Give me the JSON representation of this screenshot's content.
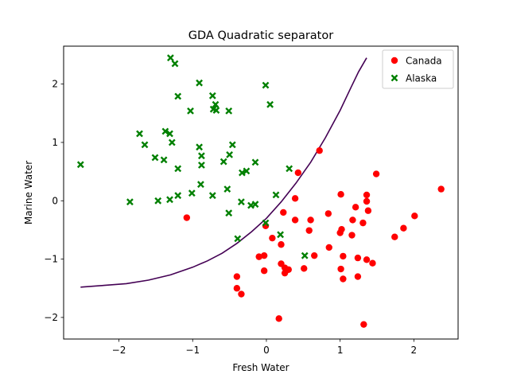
{
  "chart_data": {
    "type": "scatter",
    "title": "GDA Quadratic separator",
    "xlabel": "Fresh Water",
    "ylabel": "Marine Water",
    "xlim": [
      -2.75,
      2.6
    ],
    "ylim": [
      -2.37,
      2.65
    ],
    "xticks": [
      -2,
      -1,
      0,
      1,
      2
    ],
    "yticks": [
      -2,
      -1,
      0,
      1,
      2
    ],
    "xtick_labels": [
      "−2",
      "−1",
      "0",
      "1",
      "2"
    ],
    "ytick_labels": [
      "−2",
      "−1",
      "0",
      "1",
      "2"
    ],
    "grid": false,
    "legend_position": "top-right",
    "series": [
      {
        "name": "Canada",
        "marker": "circle",
        "color": "#ff0000",
        "points": [
          [
            2.37,
            0.2
          ],
          [
            1.49,
            0.46
          ],
          [
            0.72,
            0.86
          ],
          [
            0.43,
            0.48
          ],
          [
            1.01,
            0.11
          ],
          [
            1.36,
            0.1
          ],
          [
            1.36,
            -0.01
          ],
          [
            1.21,
            -0.11
          ],
          [
            1.38,
            -0.17
          ],
          [
            0.23,
            -0.2
          ],
          [
            0.39,
            0.04
          ],
          [
            2.01,
            -0.26
          ],
          [
            1.17,
            -0.33
          ],
          [
            0.6,
            -0.33
          ],
          [
            0.39,
            -0.33
          ],
          [
            0.84,
            -0.22
          ],
          [
            1.31,
            -0.38
          ],
          [
            1.86,
            -0.47
          ],
          [
            1.02,
            -0.49
          ],
          [
            1.74,
            -0.62
          ],
          [
            0.08,
            -0.64
          ],
          [
            0.58,
            -0.51
          ],
          [
            1.0,
            -0.55
          ],
          [
            1.16,
            -0.59
          ],
          [
            -1.08,
            -0.29
          ],
          [
            -0.01,
            -0.43
          ],
          [
            0.2,
            -0.75
          ],
          [
            0.85,
            -0.8
          ],
          [
            -0.1,
            -0.96
          ],
          [
            -0.03,
            -0.94
          ],
          [
            0.65,
            -0.94
          ],
          [
            1.04,
            -0.95
          ],
          [
            1.24,
            -0.98
          ],
          [
            1.36,
            -1.01
          ],
          [
            1.44,
            -1.07
          ],
          [
            0.2,
            -1.08
          ],
          [
            0.25,
            -1.15
          ],
          [
            0.3,
            -1.18
          ],
          [
            0.51,
            -1.16
          ],
          [
            1.01,
            -1.17
          ],
          [
            -0.03,
            -1.2
          ],
          [
            0.25,
            -1.24
          ],
          [
            1.24,
            -1.3
          ],
          [
            -0.4,
            -1.3
          ],
          [
            1.04,
            -1.34
          ],
          [
            -0.4,
            -1.5
          ],
          [
            -0.34,
            -1.6
          ],
          [
            0.17,
            -2.02
          ],
          [
            1.32,
            -2.12
          ]
        ]
      },
      {
        "name": "Alaska",
        "marker": "x",
        "color": "#008000",
        "points": [
          [
            -1.3,
            2.45
          ],
          [
            -1.24,
            2.35
          ],
          [
            -0.91,
            2.02
          ],
          [
            -0.01,
            1.98
          ],
          [
            -0.73,
            1.8
          ],
          [
            -1.2,
            1.79
          ],
          [
            -0.69,
            1.65
          ],
          [
            0.05,
            1.65
          ],
          [
            -0.72,
            1.57
          ],
          [
            -0.68,
            1.55
          ],
          [
            -0.51,
            1.54
          ],
          [
            -1.03,
            1.54
          ],
          [
            -1.72,
            1.15
          ],
          [
            -1.37,
            1.19
          ],
          [
            -1.31,
            1.15
          ],
          [
            -1.65,
            0.96
          ],
          [
            -1.28,
            1.0
          ],
          [
            -0.91,
            0.92
          ],
          [
            -0.46,
            0.96
          ],
          [
            -0.5,
            0.79
          ],
          [
            -1.51,
            0.74
          ],
          [
            -1.39,
            0.7
          ],
          [
            -0.88,
            0.77
          ],
          [
            -0.58,
            0.67
          ],
          [
            -2.52,
            0.62
          ],
          [
            -1.2,
            0.55
          ],
          [
            -0.88,
            0.61
          ],
          [
            -0.33,
            0.48
          ],
          [
            -0.27,
            0.51
          ],
          [
            -0.15,
            0.66
          ],
          [
            0.31,
            0.55
          ],
          [
            -0.89,
            0.28
          ],
          [
            -1.01,
            0.13
          ],
          [
            -0.73,
            0.09
          ],
          [
            -1.2,
            0.09
          ],
          [
            -0.53,
            0.2
          ],
          [
            0.13,
            0.1
          ],
          [
            -1.47,
            0.0
          ],
          [
            -1.31,
            0.02
          ],
          [
            -0.34,
            -0.02
          ],
          [
            -0.21,
            -0.08
          ],
          [
            -0.15,
            -0.06
          ],
          [
            -1.85,
            -0.02
          ],
          [
            -0.51,
            -0.21
          ],
          [
            -0.01,
            -0.38
          ],
          [
            0.19,
            -0.58
          ],
          [
            -0.39,
            -0.65
          ],
          [
            0.52,
            -0.94
          ]
        ]
      }
    ],
    "separator_curve": {
      "color": "#440154",
      "x": [
        -2.52,
        -2.2,
        -1.9,
        -1.6,
        -1.3,
        -1.0,
        -0.8,
        -0.6,
        -0.4,
        -0.2,
        0.0,
        0.2,
        0.4,
        0.6,
        0.8,
        1.0,
        1.15,
        1.25,
        1.36
      ],
      "y": [
        -1.48,
        -1.45,
        -1.42,
        -1.36,
        -1.27,
        -1.14,
        -1.03,
        -0.9,
        -0.73,
        -0.53,
        -0.3,
        -0.02,
        0.3,
        0.66,
        1.08,
        1.55,
        1.95,
        2.21,
        2.45
      ]
    }
  }
}
